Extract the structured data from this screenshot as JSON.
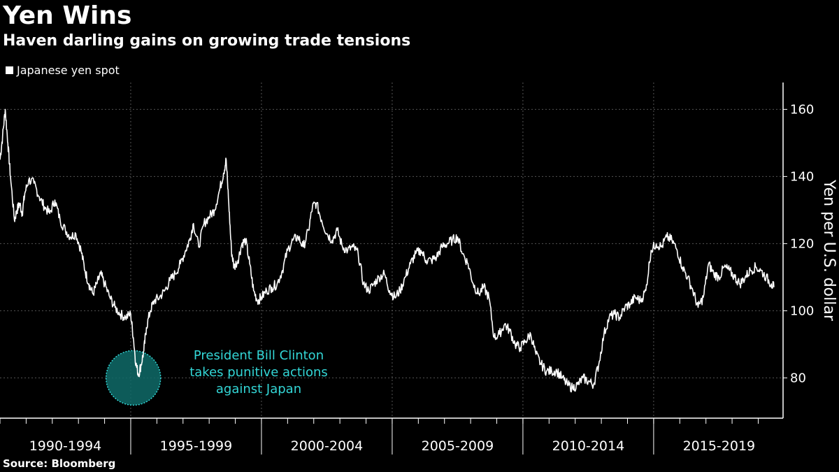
{
  "header": {
    "title": "Yen Wins",
    "subtitle": "Haven darling gains on growing trade tensions"
  },
  "legend": {
    "label": "Japanese yen spot"
  },
  "footer": {
    "source": "Source: Bloomberg"
  },
  "colors": {
    "background": "#000000",
    "line": "#ffffff",
    "grid": "#555555",
    "annotation": "#33d6d6",
    "highlight_fill": "#0f6b69"
  },
  "chart_data": {
    "type": "line",
    "title": "Yen Wins",
    "subtitle": "Haven darling gains on growing trade tensions",
    "ylabel": "Yen per U.S. dollar",
    "ylim": [
      68,
      168
    ],
    "xlim": [
      1990.0,
      2019.95
    ],
    "yticks": [
      80,
      100,
      120,
      140,
      160
    ],
    "grid": true,
    "legend_placement": "top-left",
    "categories": [
      "1990-1994",
      "1995-1999",
      "2000-2004",
      "2005-2009",
      "2010-2014",
      "2015-2019"
    ],
    "series": [
      {
        "name": "Japanese yen spot",
        "x": [
          1990.0,
          1990.1,
          1990.2,
          1990.3,
          1990.4,
          1990.55,
          1990.65,
          1990.75,
          1990.85,
          1990.95,
          1991.1,
          1991.3,
          1991.5,
          1991.7,
          1991.9,
          1992.1,
          1992.3,
          1992.5,
          1992.7,
          1992.9,
          1993.1,
          1993.25,
          1993.4,
          1993.55,
          1993.7,
          1993.85,
          1994.0,
          1994.2,
          1994.4,
          1994.6,
          1994.8,
          1995.0,
          1995.1,
          1995.2,
          1995.3,
          1995.4,
          1995.5,
          1995.6,
          1995.75,
          1995.9,
          1996.1,
          1996.3,
          1996.5,
          1996.7,
          1996.9,
          1997.1,
          1997.25,
          1997.4,
          1997.6,
          1997.8,
          1998.0,
          1998.2,
          1998.4,
          1998.55,
          1998.65,
          1998.75,
          1998.85,
          1998.95,
          1999.1,
          1999.25,
          1999.4,
          1999.55,
          1999.7,
          1999.85,
          2000.0,
          2000.2,
          2000.4,
          2000.6,
          2000.8,
          2001.0,
          2001.2,
          2001.4,
          2001.6,
          2001.8,
          2001.95,
          2002.1,
          2002.3,
          2002.5,
          2002.7,
          2002.9,
          2003.1,
          2003.3,
          2003.5,
          2003.7,
          2003.9,
          2004.1,
          2004.3,
          2004.5,
          2004.7,
          2004.9,
          2005.1,
          2005.3,
          2005.5,
          2005.7,
          2005.9,
          2006.1,
          2006.3,
          2006.5,
          2006.7,
          2006.9,
          2007.1,
          2007.3,
          2007.5,
          2007.7,
          2007.9,
          2008.1,
          2008.3,
          2008.5,
          2008.7,
          2008.9,
          2009.1,
          2009.3,
          2009.5,
          2009.7,
          2009.9,
          2010.1,
          2010.3,
          2010.5,
          2010.7,
          2010.9,
          2011.1,
          2011.3,
          2011.5,
          2011.7,
          2011.9,
          2012.1,
          2012.3,
          2012.5,
          2012.7,
          2012.9,
          2013.1,
          2013.3,
          2013.5,
          2013.7,
          2013.9,
          2014.1,
          2014.3,
          2014.5,
          2014.7,
          2014.9,
          2015.1,
          2015.3,
          2015.5,
          2015.7,
          2015.9,
          2016.1,
          2016.3,
          2016.5,
          2016.7,
          2016.9,
          2017.1,
          2017.3,
          2017.5,
          2017.7,
          2017.9,
          2018.1,
          2018.3,
          2018.5,
          2018.7,
          2018.9,
          2019.1,
          2019.3,
          2019.5,
          2019.6
        ],
        "values": [
          145,
          152,
          160,
          150,
          140,
          127,
          130,
          132,
          129,
          135,
          139,
          138,
          134,
          131,
          129,
          133,
          127,
          124,
          122,
          123,
          118,
          112,
          108,
          105,
          108,
          111,
          108,
          104,
          101,
          99,
          98,
          99,
          92,
          84,
          81,
          84,
          88,
          95,
          100,
          103,
          104,
          106,
          109,
          111,
          114,
          118,
          121,
          126,
          119,
          126,
          128,
          130,
          136,
          141,
          145,
          132,
          118,
          113,
          115,
          120,
          121,
          114,
          106,
          103,
          104,
          106,
          107,
          108,
          112,
          118,
          121,
          122,
          119,
          124,
          131,
          132,
          127,
          123,
          121,
          124,
          119,
          118,
          119,
          117,
          108,
          106,
          108,
          110,
          111,
          106,
          104,
          106,
          110,
          114,
          117,
          118,
          115,
          115,
          116,
          119,
          120,
          121,
          122,
          117,
          114,
          108,
          105,
          107,
          104,
          92,
          93,
          96,
          94,
          90,
          89,
          91,
          93,
          87,
          84,
          82,
          82,
          82,
          80,
          78,
          77,
          78,
          80,
          79,
          78,
          84,
          93,
          98,
          99,
          98,
          101,
          102,
          104,
          103,
          106,
          118,
          120,
          119,
          122,
          121,
          118,
          113,
          110,
          106,
          101,
          104,
          114,
          111,
          110,
          113,
          112,
          110,
          108,
          110,
          112,
          113,
          112,
          110,
          108,
          107
        ]
      }
    ],
    "annotations": [
      {
        "lines": [
          "President Bill Clinton",
          "takes punitive actions",
          "against Japan"
        ],
        "x": 1995.1,
        "y": 80
      }
    ]
  }
}
